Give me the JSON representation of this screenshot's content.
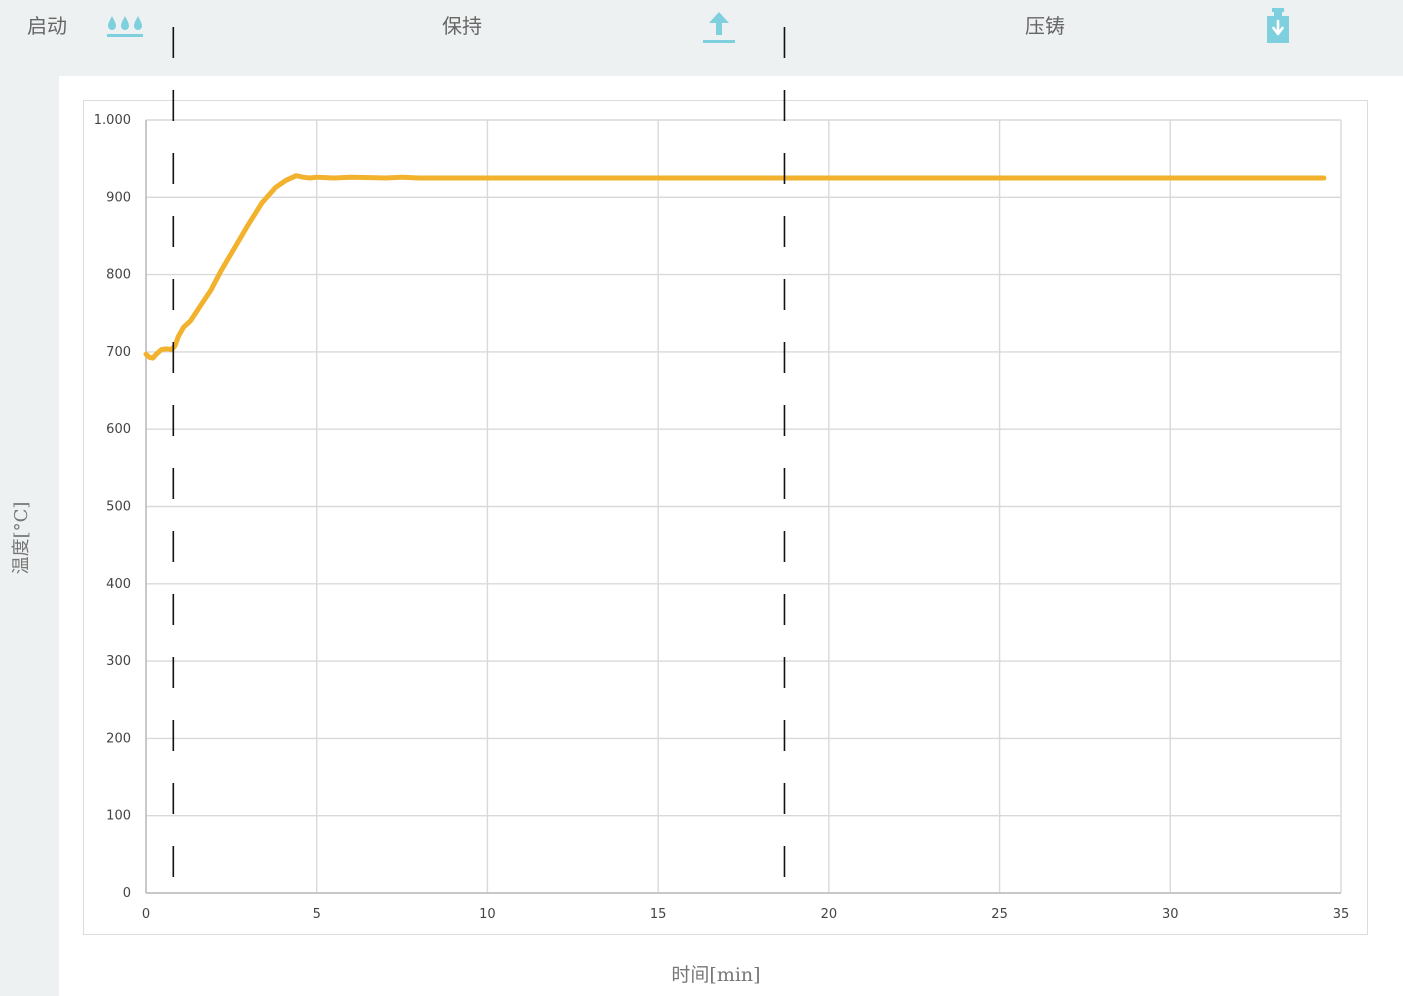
{
  "phases": [
    {
      "label": "启动",
      "icon": "water-drops-icon"
    },
    {
      "label": "保持",
      "icon": "upload-arrow-icon"
    },
    {
      "label": "压铸",
      "icon": "weight-press-icon"
    }
  ],
  "colors": {
    "series": "#f2b22e",
    "icon": "#7fd0df",
    "grid": "#d9d9d9",
    "divider": "#111111"
  },
  "chart_data": {
    "type": "line",
    "title": "",
    "xlabel": "时间[min]",
    "ylabel": "温度[°C]",
    "xlim": [
      0,
      35
    ],
    "ylim": [
      0,
      1000
    ],
    "xticks": [
      0,
      5,
      10,
      15,
      20,
      25,
      30,
      35
    ],
    "xtick_labels": [
      "0",
      "5",
      "10",
      "15",
      "20",
      "25",
      "30",
      "35"
    ],
    "yticks": [
      0,
      100,
      200,
      300,
      400,
      500,
      600,
      700,
      800,
      900,
      1000
    ],
    "ytick_labels": [
      "0",
      "100",
      "200",
      "300",
      "400",
      "500",
      "600",
      "700",
      "800",
      "900",
      "1.000"
    ],
    "grid": true,
    "legend": "none",
    "phase_boundaries_x": [
      0.8,
      18.7
    ],
    "series": [
      {
        "x": [
          0,
          0.1,
          0.2,
          0.3,
          0.45,
          0.6,
          0.75,
          0.85,
          0.95,
          1.1,
          1.3,
          1.6,
          1.9,
          2.2,
          2.6,
          3.0,
          3.4,
          3.8,
          4.1,
          4.4,
          4.5,
          4.6,
          4.8,
          5.0,
          5.5,
          6.0,
          7.0,
          7.5,
          8.0,
          10,
          15,
          20,
          25,
          30,
          34.5
        ],
        "y": [
          697,
          693,
          692,
          697,
          703,
          704,
          703,
          708,
          720,
          732,
          740,
          760,
          780,
          805,
          835,
          865,
          893,
          913,
          922,
          928,
          927,
          926,
          925,
          926,
          925,
          926,
          925,
          926,
          925,
          925,
          925,
          925,
          925,
          925,
          925
        ]
      }
    ]
  }
}
